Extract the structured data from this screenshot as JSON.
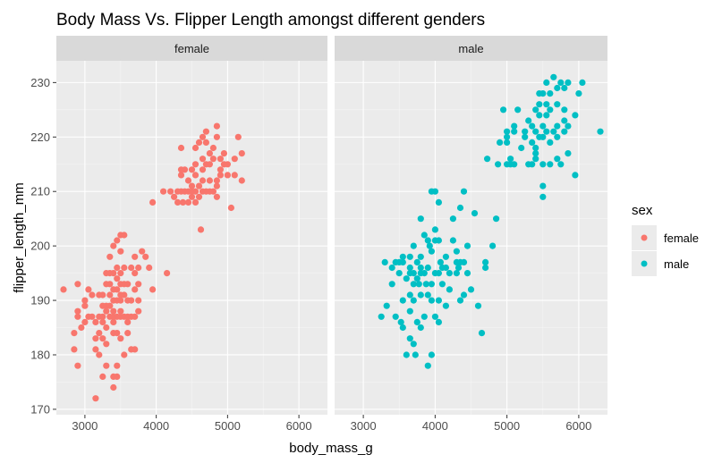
{
  "chart_data": {
    "type": "scatter",
    "title": "Body Mass Vs. Flipper Length amongst different genders",
    "xlabel": "body_mass_g",
    "ylabel": "flipper_length_mm",
    "xlim": [
      2600,
      6400
    ],
    "ylim": [
      169,
      234
    ],
    "x_ticks": [
      3000,
      4000,
      5000,
      6000
    ],
    "y_ticks": [
      170,
      180,
      190,
      200,
      210,
      220,
      230
    ],
    "grid": true,
    "legend": {
      "title": "sex",
      "placement": "right",
      "entries": [
        {
          "label": "female",
          "color": "#F8766D"
        },
        {
          "label": "male",
          "color": "#00BFC4"
        }
      ]
    },
    "facets": [
      {
        "strip": "female",
        "color": "#F8766D",
        "points": [
          [
            2700,
            192
          ],
          [
            2850,
            181
          ],
          [
            2850,
            184
          ],
          [
            2900,
            178
          ],
          [
            2900,
            187
          ],
          [
            2900,
            188
          ],
          [
            2900,
            193
          ],
          [
            2950,
            185
          ],
          [
            3000,
            186
          ],
          [
            3000,
            189
          ],
          [
            3000,
            190
          ],
          [
            3050,
            187
          ],
          [
            3050,
            192
          ],
          [
            3100,
            187
          ],
          [
            3100,
            191
          ],
          [
            3150,
            172
          ],
          [
            3150,
            181
          ],
          [
            3150,
            183
          ],
          [
            3150,
            186
          ],
          [
            3200,
            180
          ],
          [
            3200,
            184
          ],
          [
            3200,
            187
          ],
          [
            3200,
            191
          ],
          [
            3250,
            176
          ],
          [
            3250,
            183
          ],
          [
            3250,
            186
          ],
          [
            3250,
            187
          ],
          [
            3250,
            189
          ],
          [
            3250,
            191
          ],
          [
            3300,
            178
          ],
          [
            3300,
            182
          ],
          [
            3300,
            185
          ],
          [
            3300,
            188
          ],
          [
            3300,
            189
          ],
          [
            3300,
            193
          ],
          [
            3300,
            195
          ],
          [
            3350,
            187
          ],
          [
            3350,
            189
          ],
          [
            3350,
            191
          ],
          [
            3350,
            193
          ],
          [
            3350,
            195
          ],
          [
            3350,
            198
          ],
          [
            3400,
            174
          ],
          [
            3400,
            176
          ],
          [
            3400,
            184
          ],
          [
            3400,
            186
          ],
          [
            3400,
            187
          ],
          [
            3400,
            188
          ],
          [
            3400,
            190
          ],
          [
            3400,
            192
          ],
          [
            3400,
            195
          ],
          [
            3400,
            200
          ],
          [
            3450,
            176
          ],
          [
            3450,
            178
          ],
          [
            3450,
            184
          ],
          [
            3450,
            187
          ],
          [
            3450,
            190
          ],
          [
            3450,
            192
          ],
          [
            3450,
            194
          ],
          [
            3450,
            196
          ],
          [
            3450,
            201
          ],
          [
            3500,
            183
          ],
          [
            3500,
            187
          ],
          [
            3500,
            188
          ],
          [
            3500,
            190
          ],
          [
            3500,
            191
          ],
          [
            3500,
            193
          ],
          [
            3500,
            195
          ],
          [
            3500,
            199
          ],
          [
            3500,
            202
          ],
          [
            3550,
            180
          ],
          [
            3550,
            187
          ],
          [
            3550,
            191
          ],
          [
            3550,
            193
          ],
          [
            3550,
            196
          ],
          [
            3550,
            202
          ],
          [
            3600,
            184
          ],
          [
            3600,
            186
          ],
          [
            3600,
            187
          ],
          [
            3600,
            190
          ],
          [
            3600,
            193
          ],
          [
            3650,
            181
          ],
          [
            3650,
            187
          ],
          [
            3650,
            190
          ],
          [
            3650,
            196
          ],
          [
            3700,
            181
          ],
          [
            3700,
            187
          ],
          [
            3700,
            192
          ],
          [
            3700,
            195
          ],
          [
            3700,
            198
          ],
          [
            3750,
            188
          ],
          [
            3750,
            190
          ],
          [
            3750,
            193
          ],
          [
            3750,
            196
          ],
          [
            3800,
            199
          ],
          [
            3850,
            198
          ],
          [
            3900,
            196
          ],
          [
            3950,
            192
          ],
          [
            4150,
            195
          ],
          [
            3950,
            208
          ],
          [
            4100,
            210
          ],
          [
            4200,
            210
          ],
          [
            4250,
            209
          ],
          [
            4300,
            208
          ],
          [
            4300,
            210
          ],
          [
            4350,
            210
          ],
          [
            4350,
            213
          ],
          [
            4350,
            214
          ],
          [
            4350,
            218
          ],
          [
            4375,
            208
          ],
          [
            4400,
            210
          ],
          [
            4400,
            214
          ],
          [
            4450,
            208
          ],
          [
            4450,
            210
          ],
          [
            4450,
            212
          ],
          [
            4500,
            209
          ],
          [
            4500,
            210
          ],
          [
            4500,
            211
          ],
          [
            4500,
            214
          ],
          [
            4550,
            208
          ],
          [
            4550,
            210
          ],
          [
            4550,
            213
          ],
          [
            4550,
            215
          ],
          [
            4550,
            218
          ],
          [
            4600,
            209
          ],
          [
            4600,
            211
          ],
          [
            4600,
            219
          ],
          [
            4625,
            203
          ],
          [
            4650,
            210
          ],
          [
            4650,
            212
          ],
          [
            4650,
            214
          ],
          [
            4650,
            216
          ],
          [
            4650,
            220
          ],
          [
            4700,
            210
          ],
          [
            4700,
            215
          ],
          [
            4700,
            219
          ],
          [
            4700,
            221
          ],
          [
            4750,
            210
          ],
          [
            4750,
            212
          ],
          [
            4750,
            215
          ],
          [
            4750,
            217
          ],
          [
            4800,
            210
          ],
          [
            4800,
            216
          ],
          [
            4800,
            218
          ],
          [
            4850,
            209
          ],
          [
            4850,
            211
          ],
          [
            4850,
            212
          ],
          [
            4850,
            222
          ],
          [
            4850,
            220
          ],
          [
            4900,
            213
          ],
          [
            4900,
            214
          ],
          [
            4900,
            216
          ],
          [
            4950,
            215
          ],
          [
            4950,
            217
          ],
          [
            5000,
            213
          ],
          [
            5000,
            215
          ],
          [
            5050,
            207
          ],
          [
            5100,
            213
          ],
          [
            5100,
            216
          ],
          [
            5150,
            220
          ],
          [
            5200,
            212
          ],
          [
            5200,
            217
          ]
        ]
      },
      {
        "strip": "male",
        "color": "#00BFC4",
        "points": [
          [
            3250,
            187
          ],
          [
            3300,
            197
          ],
          [
            3325,
            189
          ],
          [
            3400,
            193
          ],
          [
            3400,
            196
          ],
          [
            3450,
            187
          ],
          [
            3450,
            197
          ],
          [
            3500,
            195
          ],
          [
            3500,
            197
          ],
          [
            3525,
            186
          ],
          [
            3550,
            185
          ],
          [
            3550,
            190
          ],
          [
            3550,
            197
          ],
          [
            3550,
            198
          ],
          [
            3600,
            180
          ],
          [
            3600,
            194
          ],
          [
            3650,
            183
          ],
          [
            3650,
            188
          ],
          [
            3650,
            191
          ],
          [
            3650,
            195
          ],
          [
            3650,
            196
          ],
          [
            3650,
            198
          ],
          [
            3700,
            182
          ],
          [
            3700,
            190
          ],
          [
            3700,
            193
          ],
          [
            3700,
            195
          ],
          [
            3700,
            200
          ],
          [
            3725,
            180
          ],
          [
            3750,
            186
          ],
          [
            3750,
            194
          ],
          [
            3750,
            197
          ],
          [
            3775,
            193
          ],
          [
            3800,
            185
          ],
          [
            3800,
            191
          ],
          [
            3800,
            195
          ],
          [
            3800,
            196
          ],
          [
            3800,
            198
          ],
          [
            3800,
            205
          ],
          [
            3850,
            187
          ],
          [
            3850,
            195
          ],
          [
            3850,
            202
          ],
          [
            3875,
            193
          ],
          [
            3900,
            178
          ],
          [
            3900,
            191
          ],
          [
            3900,
            196
          ],
          [
            3900,
            201
          ],
          [
            3925,
            200
          ],
          [
            3950,
            180
          ],
          [
            3950,
            190
          ],
          [
            3950,
            193
          ],
          [
            3950,
            199
          ],
          [
            3950,
            210
          ],
          [
            4000,
            187
          ],
          [
            4000,
            195
          ],
          [
            4000,
            201
          ],
          [
            4000,
            203
          ],
          [
            4000,
            210
          ],
          [
            4050,
            186
          ],
          [
            4050,
            190
          ],
          [
            4050,
            195
          ],
          [
            4050,
            201
          ],
          [
            4050,
            208
          ],
          [
            4075,
            197
          ],
          [
            4100,
            193
          ],
          [
            4100,
            196
          ],
          [
            4150,
            189
          ],
          [
            4150,
            196
          ],
          [
            4150,
            198
          ],
          [
            4200,
            192
          ],
          [
            4200,
            195
          ],
          [
            4250,
            201
          ],
          [
            4250,
            205
          ],
          [
            4300,
            195
          ],
          [
            4300,
            197
          ],
          [
            4300,
            199
          ],
          [
            4325,
            196
          ],
          [
            4350,
            190
          ],
          [
            4350,
            197
          ],
          [
            4350,
            207
          ],
          [
            4400,
            191
          ],
          [
            4400,
            197
          ],
          [
            4400,
            210
          ],
          [
            4450,
            195
          ],
          [
            4450,
            200
          ],
          [
            4500,
            192
          ],
          [
            4550,
            206
          ],
          [
            4600,
            189
          ],
          [
            4650,
            184
          ],
          [
            4700,
            196
          ],
          [
            4700,
            197
          ],
          [
            4725,
            216
          ],
          [
            4800,
            200
          ],
          [
            4850,
            205
          ],
          [
            4875,
            215
          ],
          [
            4900,
            219
          ],
          [
            4950,
            225
          ],
          [
            5000,
            215
          ],
          [
            5000,
            219
          ],
          [
            5000,
            220
          ],
          [
            5000,
            221
          ],
          [
            5050,
            215
          ],
          [
            5050,
            216
          ],
          [
            5100,
            215
          ],
          [
            5100,
            221
          ],
          [
            5100,
            222
          ],
          [
            5150,
            225
          ],
          [
            5200,
            218
          ],
          [
            5250,
            220
          ],
          [
            5250,
            221
          ],
          [
            5300,
            223
          ],
          [
            5300,
            215
          ],
          [
            5350,
            215
          ],
          [
            5350,
            219
          ],
          [
            5350,
            222
          ],
          [
            5400,
            216
          ],
          [
            5400,
            217
          ],
          [
            5400,
            218
          ],
          [
            5400,
            221
          ],
          [
            5400,
            225
          ],
          [
            5450,
            220
          ],
          [
            5450,
            224
          ],
          [
            5450,
            226
          ],
          [
            5450,
            228
          ],
          [
            5500,
            209
          ],
          [
            5500,
            211
          ],
          [
            5500,
            215
          ],
          [
            5500,
            220
          ],
          [
            5500,
            222
          ],
          [
            5500,
            228
          ],
          [
            5550,
            221
          ],
          [
            5550,
            224
          ],
          [
            5550,
            226
          ],
          [
            5550,
            230
          ],
          [
            5600,
            215
          ],
          [
            5600,
            219
          ],
          [
            5600,
            225
          ],
          [
            5600,
            228
          ],
          [
            5650,
            221
          ],
          [
            5650,
            231
          ],
          [
            5700,
            216
          ],
          [
            5700,
            220
          ],
          [
            5700,
            222
          ],
          [
            5700,
            226
          ],
          [
            5700,
            229
          ],
          [
            5750,
            215
          ],
          [
            5750,
            230
          ],
          [
            5800,
            221
          ],
          [
            5800,
            223
          ],
          [
            5800,
            225
          ],
          [
            5800,
            229
          ],
          [
            5850,
            217
          ],
          [
            5850,
            222
          ],
          [
            5850,
            230
          ],
          [
            5950,
            213
          ],
          [
            5950,
            224
          ],
          [
            6000,
            228
          ],
          [
            6050,
            230
          ],
          [
            6300,
            221
          ]
        ]
      }
    ]
  }
}
